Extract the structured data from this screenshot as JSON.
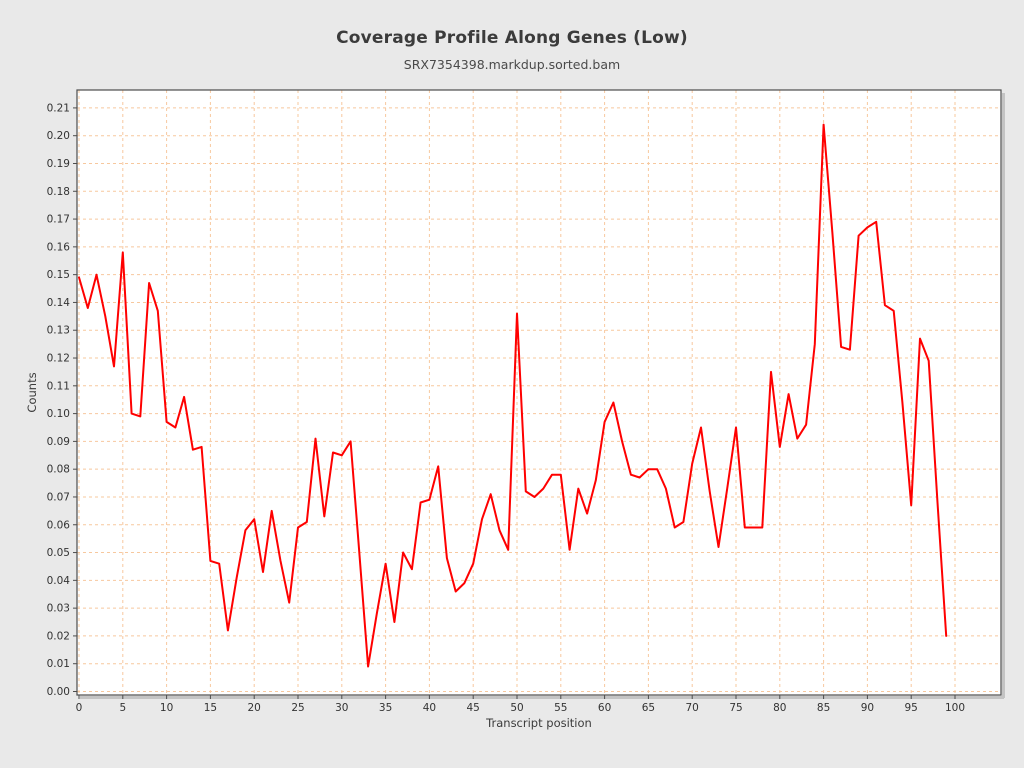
{
  "title": "Coverage Profile Along Genes (Low)",
  "subtitle": "SRX7354398.markdup.sorted.bam",
  "chart_data": {
    "type": "line",
    "title": "Coverage Profile Along Genes (Low)",
    "subtitle": "SRX7354398.markdup.sorted.bam",
    "xlabel": "Transcript position",
    "ylabel": "Counts",
    "xlim": [
      0,
      100
    ],
    "ylim": [
      0.0,
      0.21
    ],
    "x_tick_step": 5,
    "y_tick_step": 0.01,
    "grid": true,
    "legend": false,
    "line_color": "#ff0000",
    "grid_color": "#f7c89e",
    "plot_background": "#ffffff",
    "page_background": "#e9e9e9",
    "axis_color": "#4d4d4d",
    "tick_label_color": "#333333",
    "x": [
      0,
      1,
      2,
      3,
      4,
      5,
      6,
      7,
      8,
      9,
      10,
      11,
      12,
      13,
      14,
      15,
      16,
      17,
      18,
      19,
      20,
      21,
      22,
      23,
      24,
      25,
      26,
      27,
      28,
      29,
      30,
      31,
      32,
      33,
      34,
      35,
      36,
      37,
      38,
      39,
      40,
      41,
      42,
      43,
      44,
      45,
      46,
      47,
      48,
      49,
      50,
      51,
      52,
      53,
      54,
      55,
      56,
      57,
      58,
      59,
      60,
      61,
      62,
      63,
      64,
      65,
      66,
      67,
      68,
      69,
      70,
      71,
      72,
      73,
      74,
      75,
      76,
      77,
      78,
      79,
      80,
      81,
      82,
      83,
      84,
      85,
      86,
      87,
      88,
      89,
      90,
      91,
      92,
      93,
      94,
      95,
      96,
      97,
      98,
      99
    ],
    "values": [
      0.149,
      0.138,
      0.15,
      0.135,
      0.117,
      0.158,
      0.1,
      0.099,
      0.147,
      0.137,
      0.097,
      0.095,
      0.106,
      0.087,
      0.088,
      0.047,
      0.046,
      0.022,
      0.041,
      0.058,
      0.062,
      0.043,
      0.065,
      0.047,
      0.032,
      0.059,
      0.061,
      0.091,
      0.063,
      0.086,
      0.085,
      0.09,
      0.05,
      0.009,
      0.028,
      0.046,
      0.025,
      0.05,
      0.044,
      0.068,
      0.069,
      0.081,
      0.048,
      0.036,
      0.039,
      0.046,
      0.062,
      0.071,
      0.058,
      0.051,
      0.136,
      0.072,
      0.07,
      0.073,
      0.078,
      0.078,
      0.051,
      0.073,
      0.064,
      0.076,
      0.097,
      0.104,
      0.09,
      0.078,
      0.077,
      0.08,
      0.08,
      0.073,
      0.059,
      0.061,
      0.082,
      0.095,
      0.072,
      0.052,
      0.073,
      0.095,
      0.059,
      0.059,
      0.059,
      0.115,
      0.088,
      0.107,
      0.091,
      0.096,
      0.125,
      0.204,
      0.165,
      0.124,
      0.123,
      0.164,
      0.167,
      0.169,
      0.139,
      0.137,
      0.104,
      0.067,
      0.127,
      0.119,
      0.068,
      0.02
    ]
  }
}
